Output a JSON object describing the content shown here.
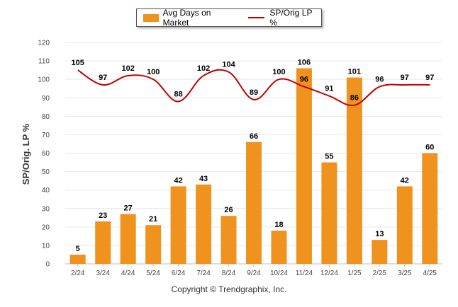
{
  "chart_data": {
    "type": "bar+line",
    "categories": [
      "2/24",
      "3/24",
      "4/24",
      "5/24",
      "6/24",
      "7/24",
      "8/24",
      "9/24",
      "10/24",
      "11/24",
      "12/24",
      "1/25",
      "2/25",
      "3/25",
      "4/25"
    ],
    "series": [
      {
        "name": "Avg Days on Market",
        "type": "bar",
        "values": [
          5,
          23,
          27,
          21,
          42,
          43,
          26,
          66,
          18,
          106,
          55,
          101,
          13,
          42,
          60
        ]
      },
      {
        "name": "SP/Orig LP %",
        "type": "line",
        "values": [
          105,
          97,
          102,
          100,
          88,
          102,
          104,
          89,
          100,
          96,
          91,
          86,
          96,
          97,
          97
        ]
      }
    ],
    "ylabel": "SP/Orig. LP %",
    "ylim": [
      0,
      120
    ],
    "yticks": [
      0,
      10,
      20,
      30,
      40,
      50,
      60,
      70,
      80,
      90,
      100,
      110,
      120
    ],
    "grid": true,
    "legend_position": "top-center",
    "colors": {
      "bar": "#F0921E",
      "line": "#C00000",
      "grid": "#E6E6E6",
      "axis": "#C0C0C0"
    }
  },
  "footer": {
    "copyright": "Copyright © Trendgraphix, Inc."
  }
}
